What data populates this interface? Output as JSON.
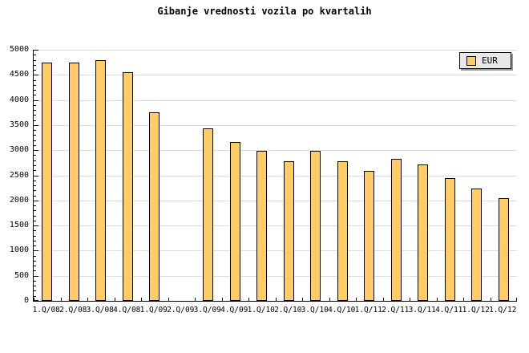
{
  "title": "Gibanje vrednosti vozila po kvartalih",
  "legend": {
    "label": "EUR"
  },
  "colors": {
    "background": "#FFFFFF",
    "bar_fill": "#FFCC66",
    "bar_border": "#000000",
    "gridline": "#DCDCDC",
    "axis": "#000000",
    "legend_bg": "#E8E8E8",
    "legend_shadow": "#999999",
    "text": "#000000"
  },
  "chart_data": {
    "type": "bar",
    "title": "Gibanje vrednosti vozila po kvartalih",
    "categories": [
      "1.Q/08",
      "2.Q/08",
      "3.Q/08",
      "4.Q/08",
      "1.Q/09",
      "2.Q/09",
      "3.Q/09",
      "4.Q/09",
      "1.Q/10",
      "2.Q/10",
      "3.Q/10",
      "4.Q/10",
      "1.Q/11",
      "2.Q/11",
      "3.Q/11",
      "4.Q/11",
      "1.Q/12",
      "1.Q/12"
    ],
    "values": [
      4750,
      4750,
      4800,
      4550,
      3750,
      null,
      3430,
      3170,
      2990,
      2780,
      2990,
      2780,
      2580,
      2820,
      2710,
      2440,
      2240,
      2040
    ],
    "missing_note": "2.Q/09 has no bar drawn",
    "xlabel": "",
    "ylabel": "",
    "ylim": [
      0,
      5000
    ],
    "ytick_step": 500,
    "ytick_minor_step": 100,
    "ytick_labels": [
      "0",
      "500",
      "1000",
      "1500",
      "2000",
      "2500",
      "3000",
      "3500",
      "4000",
      "4500",
      "5000"
    ],
    "grid": true,
    "legend": [
      "EUR"
    ],
    "legend_position": "top-right"
  }
}
